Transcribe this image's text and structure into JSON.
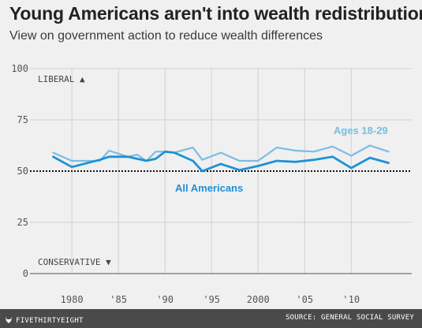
{
  "title": "Young Americans aren't into wealth redistribution",
  "subtitle": "View on government action to reduce wealth differences",
  "footer": {
    "brand": "FIVETHIRTYEIGHT",
    "brand_icon": "fox-icon",
    "source": "SOURCE: GENERAL SOCIAL SURVEY"
  },
  "chart_data": {
    "type": "line",
    "xlim": [
      1975.5,
      2016.5
    ],
    "ylim": [
      0,
      100
    ],
    "x_ticks": [
      {
        "value": 1980,
        "label": "1980"
      },
      {
        "value": 1985,
        "label": "'85"
      },
      {
        "value": 1990,
        "label": "'90"
      },
      {
        "value": 1995,
        "label": "'95"
      },
      {
        "value": 2000,
        "label": "2000"
      },
      {
        "value": 2005,
        "label": "'05"
      },
      {
        "value": 2010,
        "label": "'10"
      }
    ],
    "y_ticks": [
      {
        "value": 0,
        "label": "0"
      },
      {
        "value": 25,
        "label": "25"
      },
      {
        "value": 50,
        "label": "50"
      },
      {
        "value": 75,
        "label": "75"
      },
      {
        "value": 100,
        "label": "100"
      }
    ],
    "grid": true,
    "reference_line": 50,
    "annotations": {
      "top": "LIBERAL ▲",
      "bottom": "CONSERVATIVE ▼"
    },
    "series": [
      {
        "name": "Ages 18-29",
        "color": "#7bbde2",
        "x": [
          1978,
          1980,
          1983,
          1984,
          1986,
          1987,
          1988,
          1989,
          1990,
          1991,
          1993,
          1994,
          1996,
          1998,
          2000,
          2002,
          2004,
          2006,
          2008,
          2010,
          2012,
          2014
        ],
        "y": [
          59,
          55,
          55,
          60,
          57,
          58,
          55,
          59.5,
          59.5,
          59,
          61.5,
          55.5,
          59,
          55,
          55,
          61.5,
          60,
          59.5,
          62,
          57.5,
          62.5,
          59.5
        ]
      },
      {
        "name": "All Americans",
        "color": "#1f91d6",
        "x": [
          1978,
          1980,
          1983,
          1984,
          1986,
          1987,
          1988,
          1989,
          1990,
          1991,
          1993,
          1994,
          1996,
          1998,
          2000,
          2002,
          2004,
          2006,
          2008,
          2010,
          2012,
          2014
        ],
        "y": [
          57,
          52,
          55.5,
          57,
          57,
          56,
          55,
          56,
          59.5,
          59,
          55,
          50,
          53.5,
          50.5,
          52.5,
          55,
          54.5,
          55.5,
          57,
          51.5,
          56.5,
          54
        ]
      }
    ]
  }
}
